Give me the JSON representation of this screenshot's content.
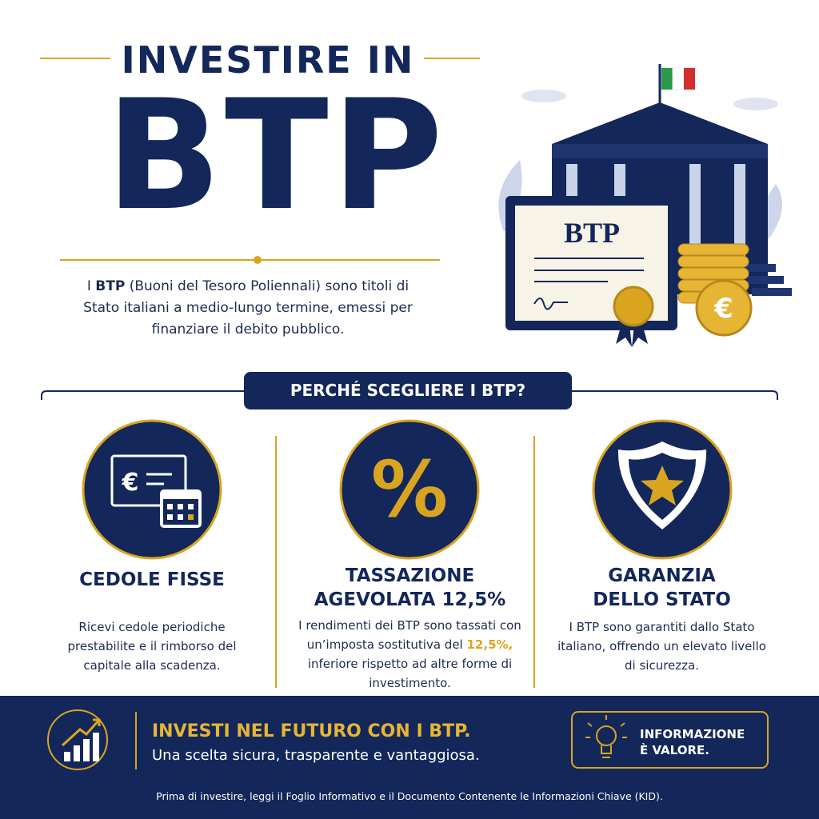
{
  "header": {
    "kicker": "INVESTIRE IN",
    "title": "BTP"
  },
  "intro": {
    "prefix": "I",
    "strong": "BTP",
    "text": "(Buoni del Tesoro Poliennali) sono titoli di Stato italiani a medio-lungo termine, emessi per finanziare il debito pubblico."
  },
  "illustration": {
    "certificate_label": "BTP",
    "coin_symbol": "€"
  },
  "section_title": "PERCHÉ SCEGLIERE I BTP?",
  "features": [
    {
      "icon_symbol": "€",
      "title": "CEDOLE FISSE",
      "text": "Ricevi cedole periodiche prestabilite e il rimborso del capitale alla scadenza."
    },
    {
      "icon_symbol": "%",
      "title": "TASSAZIONE AGEVOLATA 12,5%",
      "text_before": "I rendimenti dei BTP sono tassati con un’imposta sostitutiva del",
      "text_highlight": "12,5%,",
      "text_after": "inferiore rispetto ad altre forme di investimento."
    },
    {
      "title": "GARANZIA DELLO STATO",
      "text": "I BTP sono garantiti dallo Stato italiano, offrendo un elevato livello di sicurezza."
    }
  ],
  "footer": {
    "title": "INVESTI NEL FUTURO CON I BTP.",
    "subtitle": "Una scelta sicura, trasparente e vantaggiosa.",
    "badge": "INFORMAZIONE È VALORE.",
    "disclaimer": "Prima di investire, leggi il Foglio Informativo e il Documento Contenente le Informazioni Chiave (KID)."
  }
}
